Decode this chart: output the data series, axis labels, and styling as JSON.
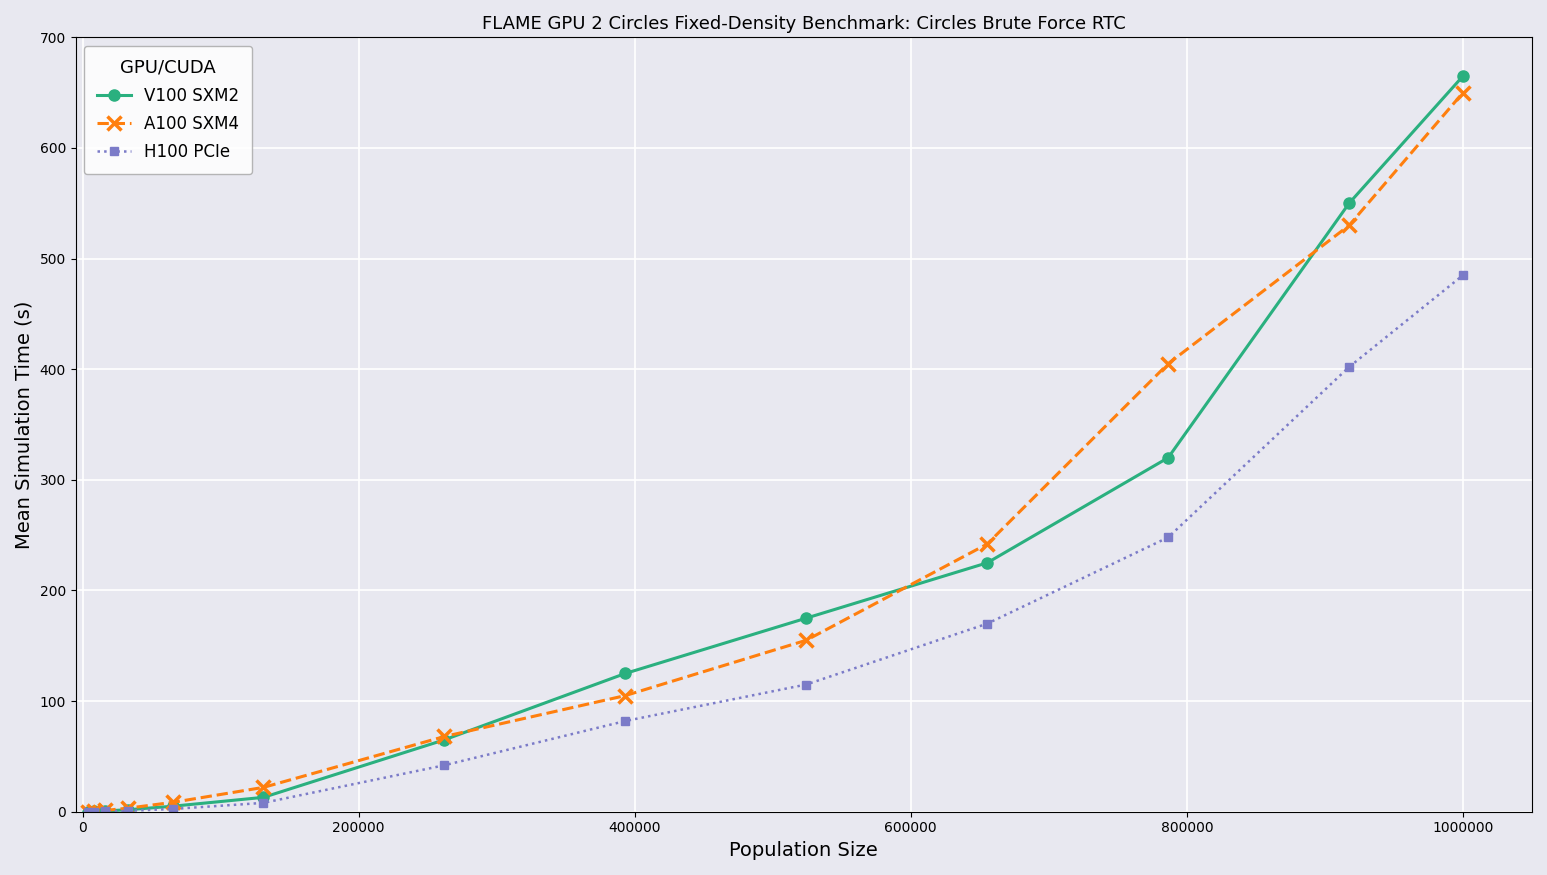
{
  "title": "FLAME GPU 2 Circles Fixed-Density Benchmark: Circles Brute Force RTC",
  "xlabel": "Population Size",
  "ylabel": "Mean Simulation Time (s)",
  "legend_title": "GPU/CUDA",
  "background_color": "#e8e8f0",
  "series": [
    {
      "label": "V100 SXM2",
      "color": "#2ab07f",
      "linestyle": "-",
      "marker": "o",
      "markersize": 8,
      "linewidth": 2.2,
      "x": [
        4096,
        8192,
        16384,
        32768,
        65536,
        131072,
        262144,
        393216,
        524288,
        655360,
        786432,
        917504,
        1000000
      ],
      "y": [
        0.1,
        0.3,
        0.7,
        1.8,
        5.0,
        13.0,
        65.0,
        125.0,
        175.0,
        225.0,
        320.0,
        550.0,
        665.0
      ]
    },
    {
      "label": "A100 SXM4",
      "color": "#ff7f0e",
      "linestyle": "--",
      "marker": "x",
      "markersize": 10,
      "linewidth": 2.2,
      "markeredgewidth": 2.5,
      "x": [
        4096,
        8192,
        16384,
        32768,
        65536,
        131072,
        262144,
        393216,
        524288,
        655360,
        786432,
        917504,
        1000000
      ],
      "y": [
        0.2,
        0.5,
        1.2,
        3.2,
        8.5,
        22.0,
        68.0,
        105.0,
        155.0,
        242.0,
        405.0,
        530.0,
        650.0
      ]
    },
    {
      "label": "H100 PCIe",
      "color": "#7b7bc8",
      "linestyle": ":",
      "marker": "s",
      "markersize": 6,
      "linewidth": 1.8,
      "x": [
        4096,
        8192,
        16384,
        32768,
        65536,
        131072,
        262144,
        393216,
        524288,
        655360,
        786432,
        917504,
        1000000
      ],
      "y": [
        0.05,
        0.1,
        0.3,
        0.8,
        2.5,
        8.0,
        42.0,
        82.0,
        115.0,
        170.0,
        248.0,
        402.0,
        485.0
      ]
    }
  ],
  "xlim": [
    -5000,
    1050000
  ],
  "ylim": [
    0,
    700
  ],
  "xticks": [
    0,
    200000,
    400000,
    600000,
    800000,
    1000000
  ],
  "yticks": [
    0,
    100,
    200,
    300,
    400,
    500,
    600,
    700
  ],
  "grid": true
}
